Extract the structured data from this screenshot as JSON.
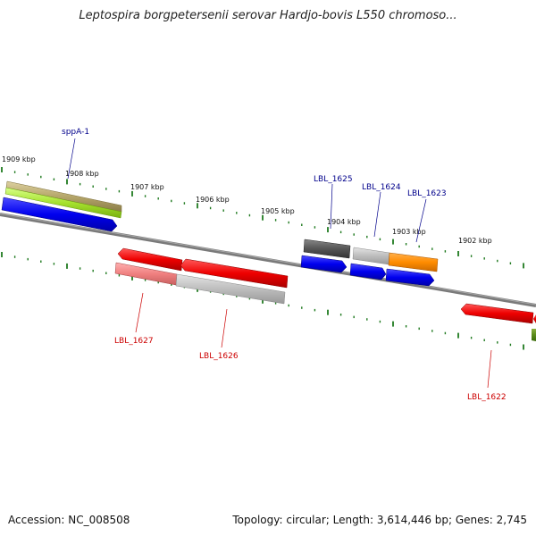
{
  "title": "Leptospira borgpetersenii serovar Hardjo-bovis L550 chromoso...",
  "footer": {
    "accession": "Accession: NC_008508",
    "summary": "Topology: circular; Length: 3,614,446 bp; Genes: 2,745"
  },
  "colors": {
    "backbone": "#7a7a7a",
    "tick": "#1f7a1f",
    "label_forward": "#00008b",
    "label_reverse": "#cc0000",
    "forward_gene": "#0000ee",
    "reverse_gene": "#ee0000",
    "grey_feature": "#b8b8b8",
    "dark_feature": "#555555",
    "orange_feature": "#ff8c00",
    "olive_feature": "#b5a66a",
    "lime_feature": "#a6e22e"
  },
  "scale_labels": [
    "1909 kbp",
    "1908 kbp",
    "1907 kbp",
    "1906 kbp",
    "1905 kbp",
    "1904 kbp",
    "1903 kbp",
    "1902 kbp"
  ],
  "gene_labels": {
    "forward": [
      "sppA-1",
      "LBL_1625",
      "LBL_1624",
      "LBL_1623"
    ],
    "reverse": [
      "LBL_1627",
      "LBL_1626",
      "LBL_1622"
    ]
  }
}
